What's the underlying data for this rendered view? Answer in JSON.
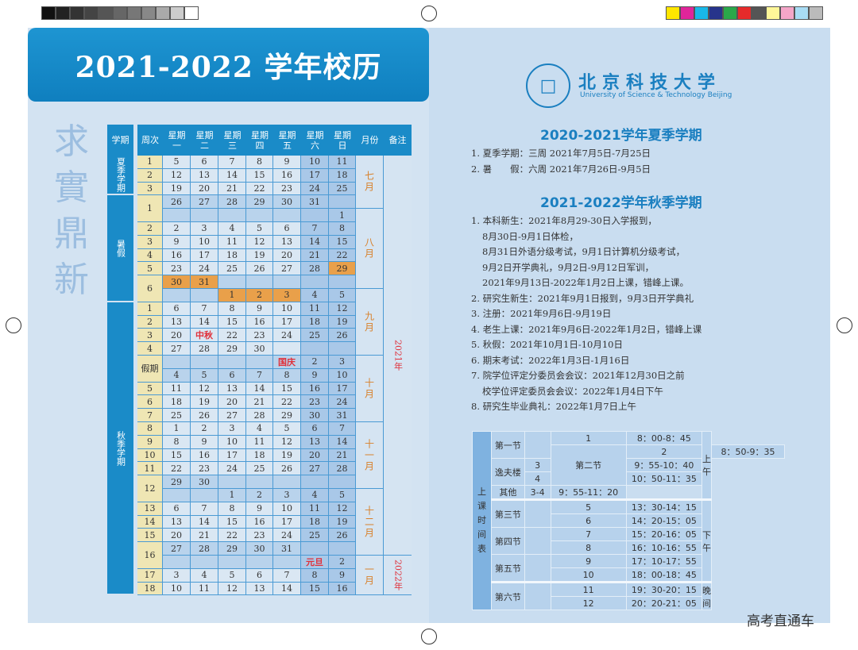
{
  "header": {
    "title": "2021-2022 学年校历"
  },
  "seal_text": "求實鼎新",
  "table": {
    "headers": {
      "term": "学期",
      "week": "周次",
      "days": [
        "星期\n一",
        "星期\n二",
        "星期\n三",
        "星期\n四",
        "星期\n五",
        "星期\n六",
        "星期\n日"
      ],
      "month": "月份",
      "remark": "备注"
    },
    "terms": [
      {
        "label": "夏季学期",
        "rows": 3
      },
      {
        "label": "暑假",
        "rows": 8
      },
      {
        "label": "秋季学期",
        "rows": 22
      }
    ],
    "months": [
      {
        "label": "七月",
        "rows": 4
      },
      {
        "label": "八月",
        "rows": 6
      },
      {
        "label": "九月",
        "rows": 5
      },
      {
        "label": "十月",
        "rows": 5
      },
      {
        "label": "十一月",
        "rows": 5
      },
      {
        "label": "十二月",
        "rows": 5
      },
      {
        "label": "一月",
        "rows": 3
      }
    ],
    "remarks": [
      {
        "label": "2021年",
        "rows": 30
      },
      {
        "label": "2022年",
        "rows": 3
      }
    ],
    "rows": [
      {
        "week": "1",
        "span": 1,
        "days": [
          "5",
          "6",
          "7",
          "8",
          "9",
          "10",
          "11"
        ]
      },
      {
        "week": "2",
        "span": 1,
        "days": [
          "12",
          "13",
          "14",
          "15",
          "16",
          "17",
          "18"
        ]
      },
      {
        "week": "3",
        "span": 1,
        "days": [
          "19",
          "20",
          "21",
          "22",
          "23",
          "24",
          "25"
        ]
      },
      {
        "week": "1",
        "span": 2,
        "days": [
          "26",
          "27",
          "28",
          "29",
          "30",
          "31",
          ""
        ]
      },
      {
        "days": [
          "",
          "",
          "",
          "",
          "",
          "",
          "1"
        ]
      },
      {
        "week": "2",
        "span": 1,
        "days": [
          "2",
          "3",
          "4",
          "5",
          "6",
          "7",
          "8"
        ]
      },
      {
        "week": "3",
        "span": 1,
        "days": [
          "9",
          "10",
          "11",
          "12",
          "13",
          "14",
          "15"
        ]
      },
      {
        "week": "4",
        "span": 1,
        "days": [
          "16",
          "17",
          "18",
          "19",
          "20",
          "21",
          "22"
        ]
      },
      {
        "week": "5",
        "span": 1,
        "days": [
          "23",
          "24",
          "25",
          "26",
          "27",
          "28",
          "29"
        ],
        "highlight": [
          6
        ]
      },
      {
        "week": "6",
        "span": 2,
        "days": [
          "30",
          "31",
          "",
          "",
          "",
          "",
          ""
        ],
        "highlight": [
          0,
          1
        ]
      },
      {
        "days": [
          "",
          "",
          "1",
          "2",
          "3",
          "4",
          "5"
        ],
        "highlight": [
          2,
          3,
          4
        ]
      },
      {
        "week": "1",
        "span": 1,
        "days": [
          "6",
          "7",
          "8",
          "9",
          "10",
          "11",
          "12"
        ]
      },
      {
        "week": "2",
        "span": 1,
        "days": [
          "13",
          "14",
          "15",
          "16",
          "17",
          "18",
          "19"
        ]
      },
      {
        "week": "3",
        "span": 1,
        "days": [
          "20",
          "中秋",
          "22",
          "23",
          "24",
          "25",
          "26"
        ]
      },
      {
        "week": "4",
        "span": 1,
        "days": [
          "27",
          "28",
          "29",
          "30",
          "",
          "",
          ""
        ]
      },
      {
        "week": "假期",
        "span": 2,
        "days": [
          "",
          "",
          "",
          "",
          "国庆",
          "2",
          "3"
        ]
      },
      {
        "days": [
          "4",
          "5",
          "6",
          "7",
          "8",
          "9",
          "10"
        ]
      },
      {
        "week": "5",
        "span": 1,
        "days": [
          "11",
          "12",
          "13",
          "14",
          "15",
          "16",
          "17"
        ]
      },
      {
        "week": "6",
        "span": 1,
        "days": [
          "18",
          "19",
          "20",
          "21",
          "22",
          "23",
          "24"
        ]
      },
      {
        "week": "7",
        "span": 1,
        "days": [
          "25",
          "26",
          "27",
          "28",
          "29",
          "30",
          "31"
        ]
      },
      {
        "week": "8",
        "span": 1,
        "days": [
          "1",
          "2",
          "3",
          "4",
          "5",
          "6",
          "7"
        ]
      },
      {
        "week": "9",
        "span": 1,
        "days": [
          "8",
          "9",
          "10",
          "11",
          "12",
          "13",
          "14"
        ]
      },
      {
        "week": "10",
        "span": 1,
        "days": [
          "15",
          "16",
          "17",
          "18",
          "19",
          "20",
          "21"
        ]
      },
      {
        "week": "11",
        "span": 1,
        "days": [
          "22",
          "23",
          "24",
          "25",
          "26",
          "27",
          "28"
        ]
      },
      {
        "week": "12",
        "span": 2,
        "days": [
          "29",
          "30",
          "",
          "",
          "",
          "",
          ""
        ]
      },
      {
        "days": [
          "",
          "",
          "1",
          "2",
          "3",
          "4",
          "5"
        ]
      },
      {
        "week": "13",
        "span": 1,
        "days": [
          "6",
          "7",
          "8",
          "9",
          "10",
          "11",
          "12"
        ]
      },
      {
        "week": "14",
        "span": 1,
        "days": [
          "13",
          "14",
          "15",
          "16",
          "17",
          "18",
          "19"
        ]
      },
      {
        "week": "15",
        "span": 1,
        "days": [
          "20",
          "21",
          "22",
          "23",
          "24",
          "25",
          "26"
        ]
      },
      {
        "week": "16",
        "span": 2,
        "days": [
          "27",
          "28",
          "29",
          "30",
          "31",
          "",
          ""
        ]
      },
      {
        "days": [
          "",
          "",
          "",
          "",
          "",
          "元旦",
          "2"
        ]
      },
      {
        "week": "17",
        "span": 1,
        "days": [
          "3",
          "4",
          "5",
          "6",
          "7",
          "8",
          "9"
        ]
      },
      {
        "week": "18",
        "span": 1,
        "days": [
          "10",
          "11",
          "12",
          "13",
          "14",
          "15",
          "16"
        ]
      }
    ],
    "holiday_labels": [
      "中秋",
      "国庆",
      "元旦"
    ]
  },
  "university": {
    "name_cn": "北京科技大学",
    "name_en": "University of Science & Technology Beijing"
  },
  "summer": {
    "title": "2020-2021学年夏季学期",
    "items": [
      "1. 夏季学期：三周 2021年7月5日-7月25日",
      "2. 暑　　假：六周 2021年7月26日-9月5日"
    ]
  },
  "autumn": {
    "title": "2021-2022学年秋季学期",
    "items": [
      {
        "text": "1. 本科新生：2021年8月29-30日入学报到，",
        "indent": false
      },
      {
        "text": "8月30日-9月1日体检，",
        "indent": true
      },
      {
        "text": "8月31日外语分级考试，9月1日计算机分级考试，",
        "indent": true
      },
      {
        "text": "9月2日开学典礼，9月2日-9月12日军训，",
        "indent": true
      },
      {
        "text": "2021年9月13日-2022年1月2日上课，错峰上课。",
        "indent": true
      },
      {
        "text": "2. 研究生新生：2021年9月1日报到，9月3日开学典礼",
        "indent": false
      },
      {
        "text": "3. 注册：2021年9月6日-9月19日",
        "indent": false
      },
      {
        "text": "4. 老生上课：2021年9月6日-2022年1月2日，错峰上课",
        "indent": false
      },
      {
        "text": "5. 秋假：2021年10月1日-10月10日",
        "indent": false
      },
      {
        "text": "6. 期末考试：2022年1月3日-1月16日",
        "indent": false
      },
      {
        "text": "7. 院学位评定分委员会会议：2021年12月30日之前",
        "indent": false
      },
      {
        "text": "校学位评定委员会会议：2022年1月4日下午",
        "indent": true
      },
      {
        "text": "8. 研究生毕业典礼：2022年1月7日上午",
        "indent": false
      }
    ]
  },
  "schedule": {
    "side_label": "上\n课\n时\n间\n表",
    "sections": [
      "第一节",
      "第二节",
      "第三节",
      "第四节",
      "第五节",
      "第六节"
    ],
    "buildings": [
      "逸夫楼",
      "其他"
    ],
    "periods": [
      "1",
      "2",
      "3",
      "4",
      "3-4",
      "5",
      "6",
      "7",
      "8",
      "9",
      "10",
      "11",
      "12"
    ],
    "times": [
      "8：00-8：45",
      "8：50-9：35",
      "9：55-10：40",
      "10：50-11：35",
      "9：55-11：20",
      "13：30-14：15",
      "14：20-15：05",
      "15：20-16：05",
      "16：10-16：55",
      "17：10-17：55",
      "18：00-18：45",
      "19：30-20：15",
      "20：20-21：05"
    ],
    "parts": [
      "上午",
      "下午",
      "晚间"
    ]
  },
  "watermark": "高考直通车",
  "colors": {
    "brand_blue": "#1a8bc8",
    "highlight_orange": "#e9a04a",
    "holiday_red": "#e0303a",
    "month_orange": "#d8802a",
    "week_yellow": "#efe6b4"
  }
}
